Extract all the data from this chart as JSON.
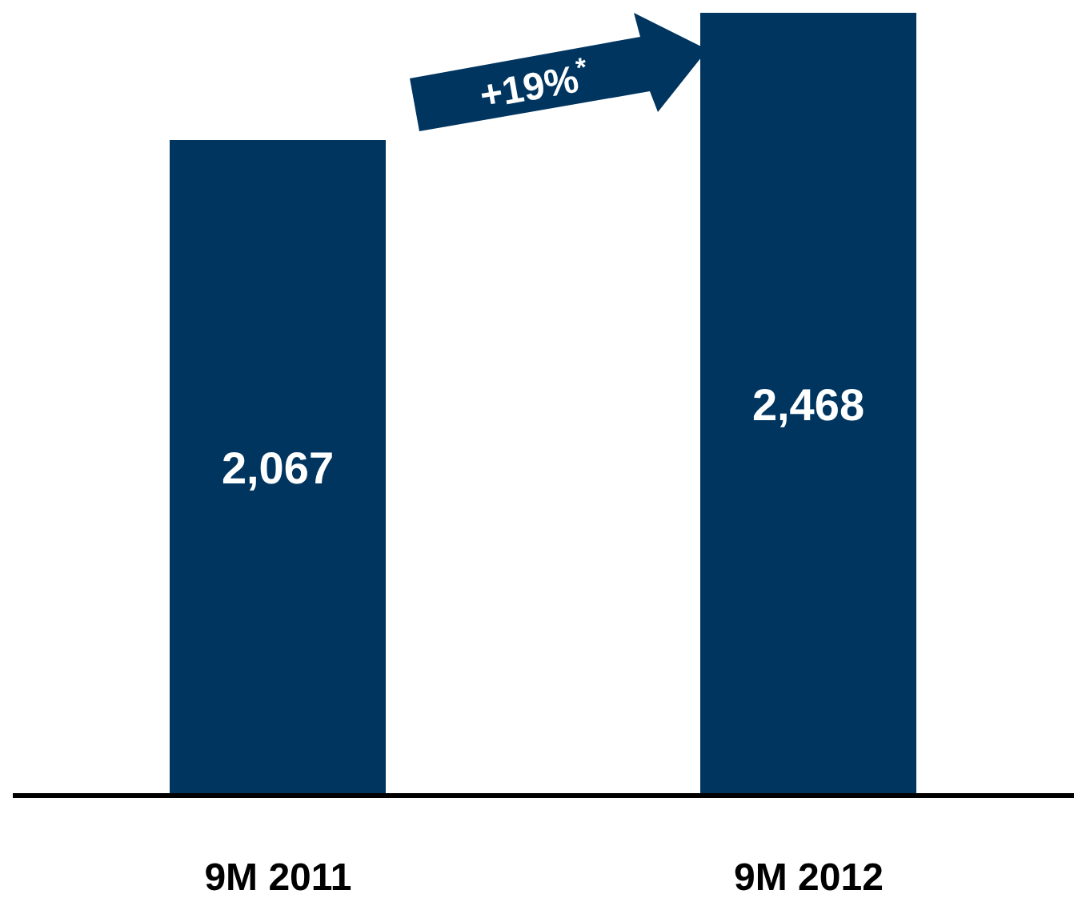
{
  "chart_data": {
    "type": "bar",
    "categories": [
      "9M 2011",
      "9M 2012"
    ],
    "values": [
      2067,
      2468
    ],
    "color": "#003560",
    "value_labels": [
      "2,067",
      "2,468"
    ],
    "annotations": [
      "+19%$^{*}$"
    ]
  }
}
